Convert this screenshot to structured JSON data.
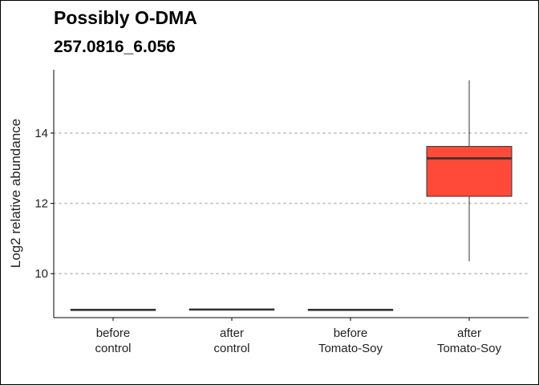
{
  "chart_data": {
    "type": "box",
    "title": "Possibly O-DMA",
    "subtitle": "257.0816_6.056",
    "xlabel": "",
    "ylabel": "Log2 relative abundance",
    "ylim": [
      8.75,
      15.8
    ],
    "yticks": [
      10,
      12,
      14
    ],
    "grid": {
      "horizontal_major": true,
      "vertical": false,
      "style": "dotted"
    },
    "legend": "none",
    "categories": [
      [
        "before",
        "control"
      ],
      [
        "after",
        "control"
      ],
      [
        "before",
        "Tomato-Soy"
      ],
      [
        "after",
        "Tomato-Soy"
      ]
    ],
    "boxes": [
      {
        "min": 8.97,
        "q1": 8.97,
        "median": 8.97,
        "q3": 8.97,
        "max": 8.97,
        "fill": "#ffffff"
      },
      {
        "min": 8.98,
        "q1": 8.98,
        "median": 8.98,
        "q3": 8.98,
        "max": 8.98,
        "fill": "#ffffff"
      },
      {
        "min": 8.97,
        "q1": 8.97,
        "median": 8.97,
        "q3": 8.97,
        "max": 8.97,
        "fill": "#ffffff"
      },
      {
        "min": 10.35,
        "q1": 12.2,
        "median": 13.28,
        "q3": 13.62,
        "max": 15.5,
        "fill": "#ff4a3a"
      }
    ]
  },
  "colors": {
    "highlight_fill": "#ff4a3a",
    "grid": "#bdbdbd",
    "axis": "#000000",
    "box_line": "#333333"
  }
}
